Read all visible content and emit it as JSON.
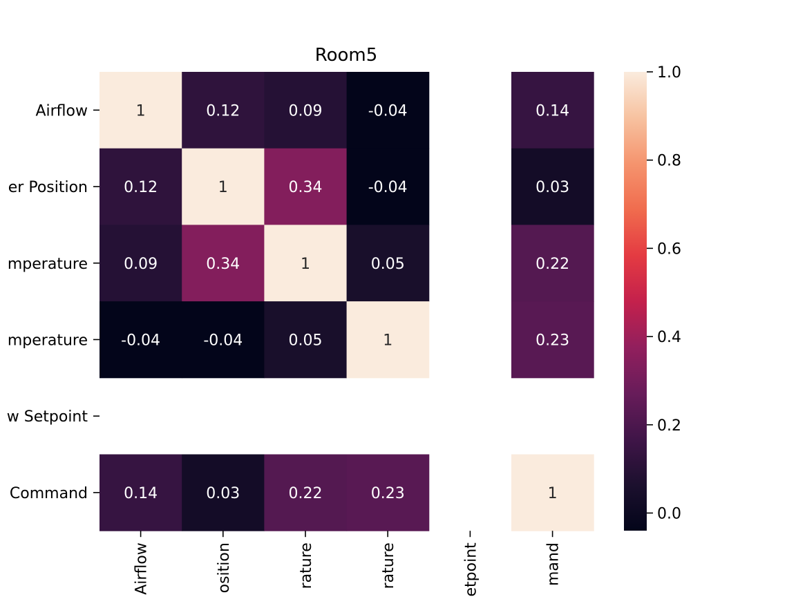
{
  "chart_data": {
    "type": "heatmap",
    "title": "Room5",
    "rows": [
      "Airflow",
      "er Position",
      "mperature",
      "mperature",
      "w Setpoint",
      "Command"
    ],
    "columns": [
      "Airflow",
      "osition",
      "rature",
      "rature",
      "etpoint",
      "mand"
    ],
    "values": [
      [
        1,
        0.12,
        0.09,
        -0.04,
        null,
        0.14
      ],
      [
        0.12,
        1,
        0.34,
        -0.04,
        null,
        0.03
      ],
      [
        0.09,
        0.34,
        1,
        0.05,
        null,
        0.22
      ],
      [
        -0.04,
        -0.04,
        0.05,
        1,
        null,
        0.23
      ],
      [
        null,
        null,
        null,
        null,
        null,
        null
      ],
      [
        0.14,
        0.03,
        0.22,
        0.23,
        null,
        1
      ]
    ],
    "cell_labels": [
      [
        "1",
        "0.12",
        "0.09",
        "-0.04",
        "",
        "0.14"
      ],
      [
        "0.12",
        "1",
        "0.34",
        "-0.04",
        "",
        "0.03"
      ],
      [
        "0.09",
        "0.34",
        "1",
        "0.05",
        "",
        "0.22"
      ],
      [
        "-0.04",
        "-0.04",
        "0.05",
        "1",
        "",
        "0.23"
      ],
      [
        "",
        "",
        "",
        "",
        "",
        ""
      ],
      [
        "0.14",
        "0.03",
        "0.22",
        "0.23",
        "",
        "1"
      ]
    ],
    "colorbar": {
      "range": [
        -0.04,
        1.0
      ],
      "ticks": [
        0.0,
        0.2,
        0.4,
        0.6,
        0.8,
        1.0
      ],
      "tick_labels": [
        "0.0",
        "0.2",
        "0.4",
        "0.6",
        "0.8",
        "1.0"
      ],
      "colormap": "rocket"
    },
    "grid": false
  }
}
